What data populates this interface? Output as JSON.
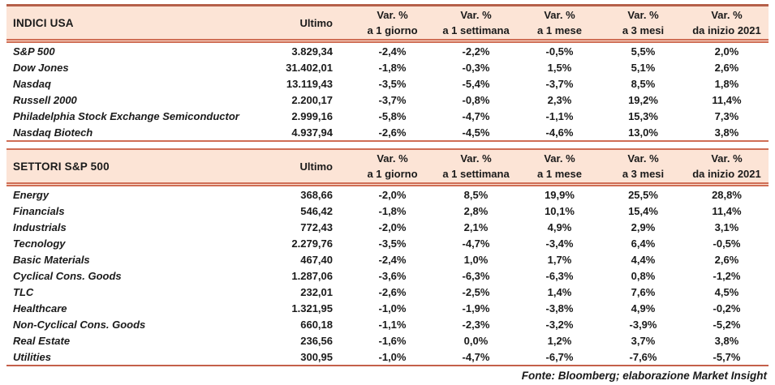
{
  "columns": {
    "ultimo_label": "Ultimo",
    "var_headers": [
      {
        "line1": "Var. %",
        "line2": "a 1 giorno"
      },
      {
        "line1": "Var. %",
        "line2": "a 1 settimana"
      },
      {
        "line1": "Var. %",
        "line2": "a 1 mese"
      },
      {
        "line1": "Var. %",
        "line2": "a 3 mesi"
      },
      {
        "line1": "Var. %",
        "line2": "da inizio 2021"
      }
    ]
  },
  "tables": [
    {
      "title": "INDICI USA",
      "rows": [
        {
          "label": "S&P 500",
          "ultimo": "3.829,34",
          "vars": [
            "-2,4%",
            "-2,2%",
            "-0,5%",
            "5,5%",
            "2,0%"
          ]
        },
        {
          "label": "Dow Jones",
          "ultimo": "31.402,01",
          "vars": [
            "-1,8%",
            "-0,3%",
            "1,5%",
            "5,1%",
            "2,6%"
          ]
        },
        {
          "label": "Nasdaq",
          "ultimo": "13.119,43",
          "vars": [
            "-3,5%",
            "-5,4%",
            "-3,7%",
            "8,5%",
            "1,8%"
          ]
        },
        {
          "label": "Russell 2000",
          "ultimo": "2.200,17",
          "vars": [
            "-3,7%",
            "-0,8%",
            "2,3%",
            "19,2%",
            "11,4%"
          ]
        },
        {
          "label": "Philadelphia Stock Exchange Semiconductor",
          "ultimo": "2.999,16",
          "vars": [
            "-5,8%",
            "-4,7%",
            "-1,1%",
            "15,3%",
            "7,3%"
          ]
        },
        {
          "label": "Nasdaq Biotech",
          "ultimo": "4.937,94",
          "vars": [
            "-2,6%",
            "-4,5%",
            "-4,6%",
            "13,0%",
            "3,8%"
          ]
        }
      ]
    },
    {
      "title": "SETTORI S&P 500",
      "rows": [
        {
          "label": "Energy",
          "ultimo": "368,66",
          "vars": [
            "-2,0%",
            "8,5%",
            "19,9%",
            "25,5%",
            "28,8%"
          ]
        },
        {
          "label": "Financials",
          "ultimo": "546,42",
          "vars": [
            "-1,8%",
            "2,8%",
            "10,1%",
            "15,4%",
            "11,4%"
          ]
        },
        {
          "label": "Industrials",
          "ultimo": "772,43",
          "vars": [
            "-2,0%",
            "2,1%",
            "4,9%",
            "2,9%",
            "3,1%"
          ]
        },
        {
          "label": "Tecnology",
          "ultimo": "2.279,76",
          "vars": [
            "-3,5%",
            "-4,7%",
            "-3,4%",
            "6,4%",
            "-0,5%"
          ]
        },
        {
          "label": "Basic Materials",
          "ultimo": "467,40",
          "vars": [
            "-2,4%",
            "1,0%",
            "1,7%",
            "4,4%",
            "2,6%"
          ]
        },
        {
          "label": "Cyclical Cons. Goods",
          "ultimo": "1.287,06",
          "vars": [
            "-3,6%",
            "-6,3%",
            "-6,3%",
            "0,8%",
            "-1,2%"
          ]
        },
        {
          "label": "TLC",
          "ultimo": "232,01",
          "vars": [
            "-2,6%",
            "-2,5%",
            "1,4%",
            "7,6%",
            "4,5%"
          ]
        },
        {
          "label": "Healthcare",
          "ultimo": "1.321,95",
          "vars": [
            "-1,0%",
            "-1,9%",
            "-3,8%",
            "4,9%",
            "-0,2%"
          ]
        },
        {
          "label": "Non-Cyclical Cons. Goods",
          "ultimo": "660,18",
          "vars": [
            "-1,1%",
            "-2,3%",
            "-3,2%",
            "-3,9%",
            "-5,2%"
          ]
        },
        {
          "label": "Real Estate",
          "ultimo": "236,56",
          "vars": [
            "-1,6%",
            "0,0%",
            "1,2%",
            "3,7%",
            "3,8%"
          ]
        },
        {
          "label": "Utilities",
          "ultimo": "300,95",
          "vars": [
            "-1,0%",
            "-4,7%",
            "-6,7%",
            "-7,6%",
            "-5,7%"
          ]
        }
      ]
    }
  ],
  "footer": {
    "source": "Fonte: Bloomberg; elaborazione Market Insight"
  },
  "colors": {
    "header_bg": "#fce4d6",
    "line_salmon": "#cf6e55",
    "line_dark": "#b5604a",
    "text": "#1a1a1a"
  }
}
